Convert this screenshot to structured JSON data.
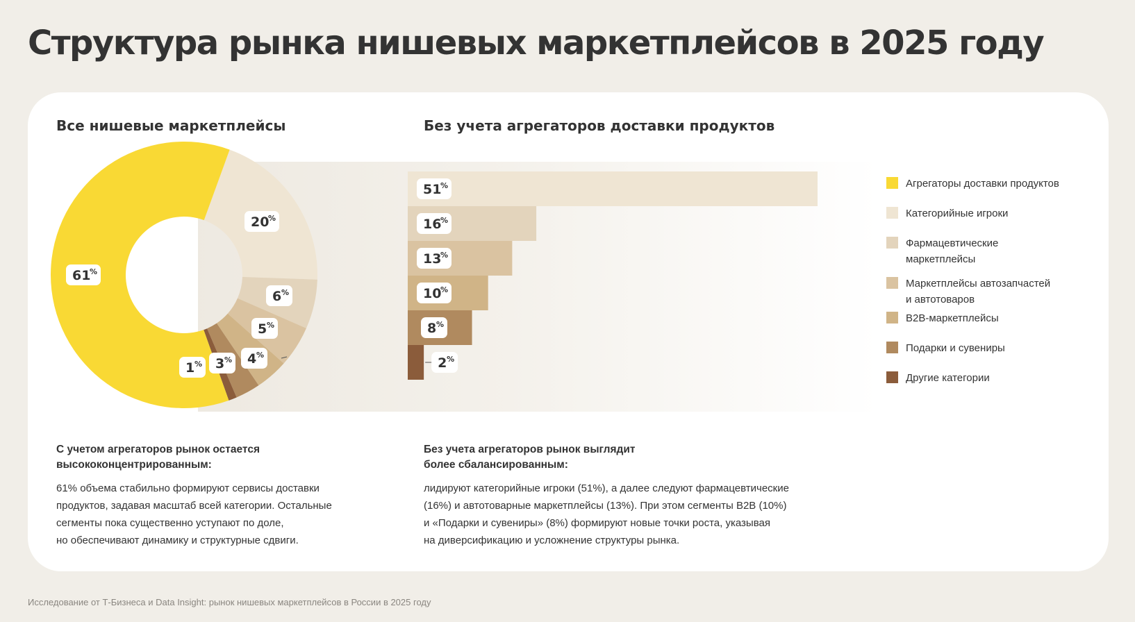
{
  "page_title": "Структура рынка нишевых маркетплейсов в 2025 году",
  "colors": {
    "background": "#f1eee8",
    "card": "#ffffff",
    "text": "#333333",
    "segments": [
      "#f9d934",
      "#efe5d3",
      "#e3d4bc",
      "#dac3a1",
      "#d0b487",
      "#b08a5f",
      "#8b5c3b"
    ]
  },
  "legend": [
    {
      "label": "Агрегаторы доставки продуктов",
      "color": "#f9d934"
    },
    {
      "label": "Категорийные игроки",
      "color": "#efe5d3"
    },
    {
      "label": "Фармацевтические маркетплейсы",
      "color": "#e3d4bc"
    },
    {
      "label": "Маркетплейсы автозапчастей и автотоваров",
      "color": "#dac3a1"
    },
    {
      "label": "B2B-маркетплейсы",
      "color": "#d0b487"
    },
    {
      "label": "Подарки и сувениры",
      "color": "#b08a5f"
    },
    {
      "label": "Другие категории",
      "color": "#8b5c3b"
    }
  ],
  "legend_display": [
    "Агрегаторы доставки продуктов",
    "Категорийные игроки",
    "Фармацевтические\nмаркетплейсы",
    "Маркетплейсы автозапчастей\nи автотоваров",
    "B2B-маркетплейсы",
    "Подарки и сувениры",
    "Другие категории"
  ],
  "chart_data": [
    {
      "type": "pie",
      "style": "donut",
      "title": "Все нишевые маркетплейсы",
      "categories": [
        "Агрегаторы доставки продуктов",
        "Категорийные игроки",
        "Фармацевтические маркетплейсы",
        "Маркетплейсы автозапчастей и автотоваров",
        "B2B-маркетплейсы",
        "Подарки и сувениры",
        "Другие категории"
      ],
      "values": [
        61,
        20,
        6,
        5,
        4,
        3,
        1
      ],
      "unit": "%",
      "value_labels": [
        "61%",
        "20%",
        "6%",
        "5%",
        "4%",
        "3%",
        "1%"
      ]
    },
    {
      "type": "bar",
      "orientation": "horizontal",
      "title": "Без учета агрегаторов доставки продуктов",
      "categories": [
        "Категорийные игроки",
        "Фармацевтические маркетплейсы",
        "Маркетплейсы автозапчастей и автотоваров",
        "B2B-маркетплейсы",
        "Подарки и сувениры",
        "Другие категории"
      ],
      "values": [
        51,
        16,
        13,
        10,
        8,
        2
      ],
      "unit": "%",
      "value_labels": [
        "51%",
        "16%",
        "13%",
        "10%",
        "8%",
        "2%"
      ]
    }
  ],
  "notes": {
    "left": {
      "heading": "С учетом агрегаторов рынок остается\nвысококонцентрированным:",
      "body": "61% объема стабильно формируют сервисы доставки\nпродуктов, задавая масштаб всей категории. Остальные\nсегменты пока существенно уступают по доле,\nно обеспечивают динамику и структурные сдвиги."
    },
    "right": {
      "heading": "Без учета агрегаторов рынок выглядит\nболее сбалансированным:",
      "body": "лидируют категорийные игроки (51%), а далее следуют фармацевтические\n(16%) и автотоварные маркетплейсы (13%). При этом сегменты B2B (10%)\nи «Подарки и сувениры» (8%) формируют новые точки роста, указывая\nна диверсификацию и усложнение структуры рынка."
    }
  },
  "footer": "Исследование от Т-Бизнеса и Data Insight: рынок нишевых маркетплейсов в России в 2025 году"
}
